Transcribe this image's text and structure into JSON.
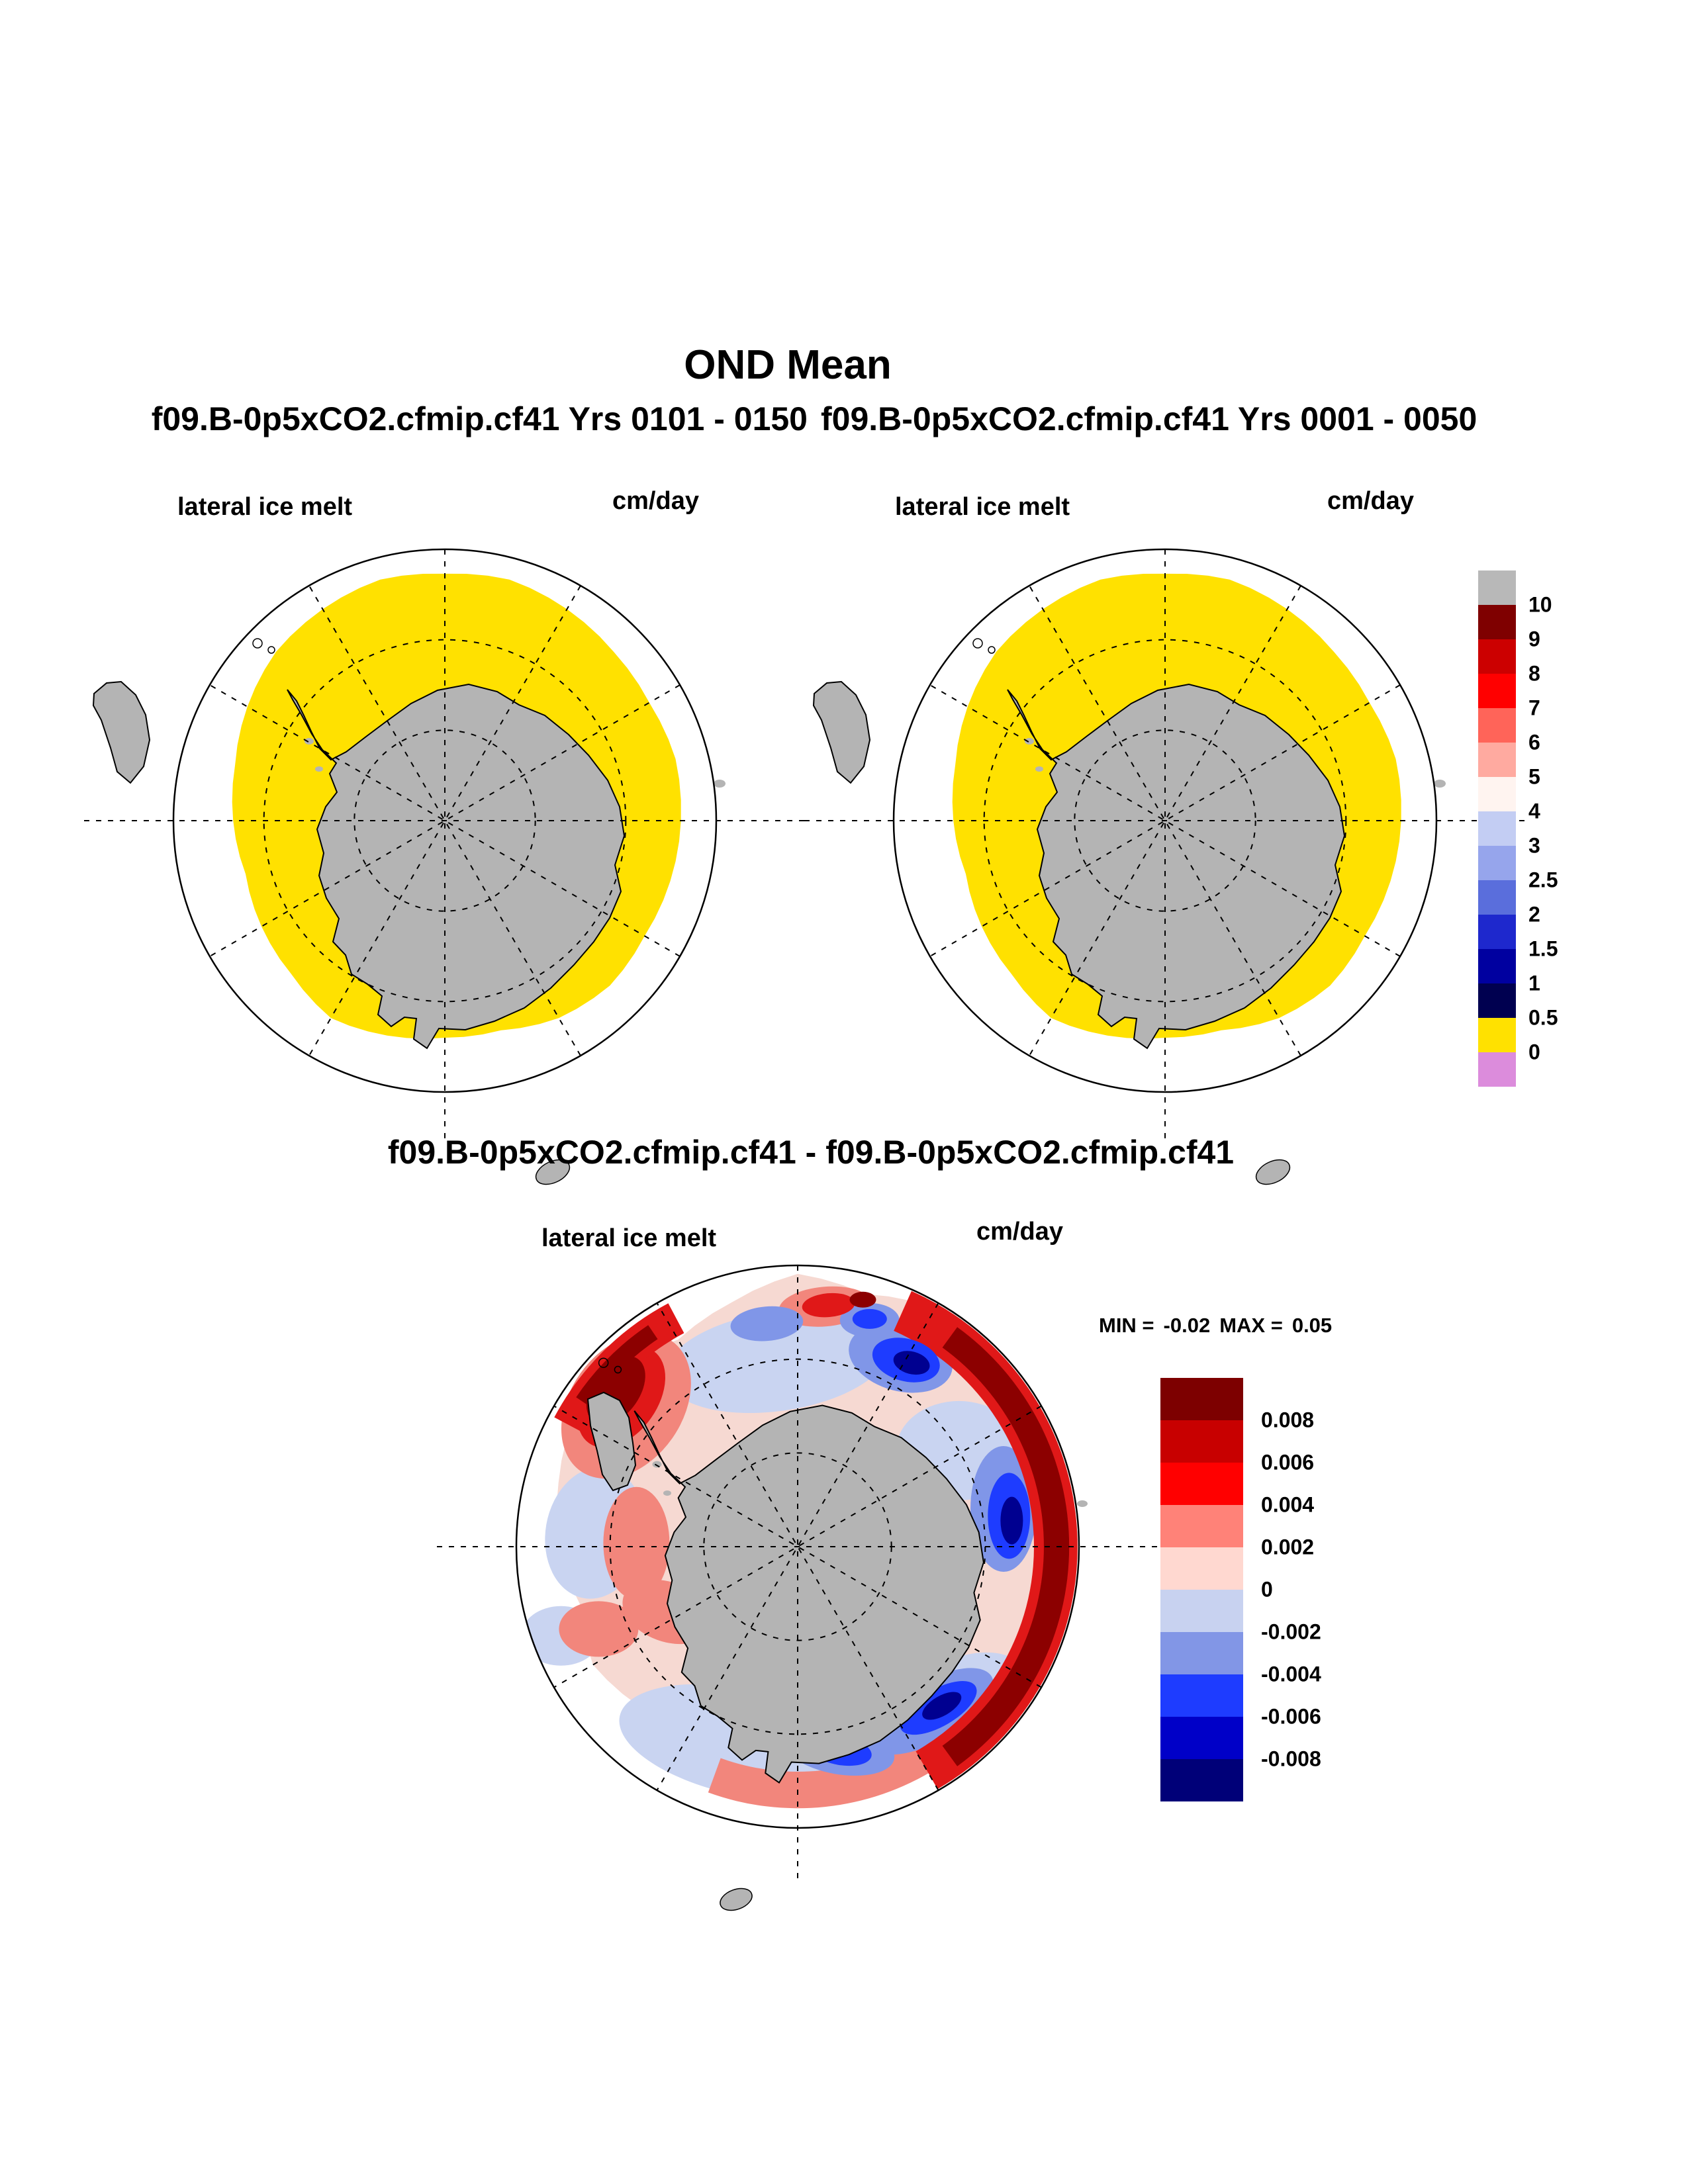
{
  "page": {
    "background": "#ffffff",
    "title": "OND Mean",
    "subtitle_left": "f09.B-0p5xCO2.cfmip.cf41  Yrs 0101 - 0150",
    "subtitle_right": "f09.B-0p5xCO2.cfmip.cf41  Yrs 0001 - 0050",
    "diff_title": "f09.B-0p5xCO2.cfmip.cf41 - f09.B-0p5xCO2.cfmip.cf41"
  },
  "panels": {
    "left": {
      "field_label": "lateral ice melt",
      "units_label": "cm/day"
    },
    "right": {
      "field_label": "lateral ice melt",
      "units_label": "cm/day"
    },
    "diff": {
      "field_label": "lateral ice melt",
      "units_label": "cm/day",
      "min_label": "MIN =",
      "min_value": "-0.02",
      "max_label": "MAX =",
      "max_value": "0.05"
    }
  },
  "colorbar_main": {
    "tick_labels": [
      "10",
      "9",
      "8",
      "7",
      "6",
      "5",
      "4",
      "3",
      "2.5",
      "2",
      "1.5",
      "1",
      "0.5",
      "0"
    ],
    "colors": [
      "#b8b8b8",
      "#7f0000",
      "#cc0000",
      "#ff0000",
      "#ff6459",
      "#ffaaa0",
      "#fff4f0",
      "#c3cdf3",
      "#96a5ec",
      "#5a6edc",
      "#1e28cd",
      "#0000a0",
      "#000050",
      "#ffe100",
      "#dc8cdc"
    ]
  },
  "colorbar_diff": {
    "tick_labels": [
      "0.008",
      "0.006",
      "0.004",
      "0.002",
      "0",
      "-0.002",
      "-0.004",
      "-0.006",
      "-0.008"
    ],
    "colors": [
      "#7d0000",
      "#c80000",
      "#ff0000",
      "#ff8278",
      "#ffd8d0",
      "#c8d2f0",
      "#8296e6",
      "#1e3cff",
      "#0000c8",
      "#000078"
    ]
  },
  "map_colors": {
    "land": "#b4b4b4",
    "ice_band": "#ffe100",
    "ocean": "#ffffff"
  },
  "chart_data": [
    {
      "type": "heatmap",
      "panel": "top-left",
      "title": "f09.B-0p5xCO2.cfmip.cf41  Yrs 0101 - 0150",
      "variable": "lateral ice melt",
      "units": "cm/day",
      "projection": "south-polar-stereographic",
      "contour_levels": [
        0,
        0.5,
        1,
        1.5,
        2,
        2.5,
        3,
        4,
        5,
        6,
        7,
        8,
        9,
        10
      ],
      "palette": [
        "#b8b8b8",
        "#7f0000",
        "#cc0000",
        "#ff0000",
        "#ff6459",
        "#ffaaa0",
        "#fff4f0",
        "#c3cdf3",
        "#96a5ec",
        "#5a6edc",
        "#1e28cd",
        "#0000a0",
        "#000050",
        "#ffe100",
        "#dc8cdc"
      ],
      "summary": "Lateral sea-ice melt of 0-0.5 cm/day (yellow band) fills the Southern Ocean sea-ice zone around gray Antarctica; open ocean beyond the ice edge is 0 (white)."
    },
    {
      "type": "heatmap",
      "panel": "top-right",
      "title": "f09.B-0p5xCO2.cfmip.cf41  Yrs 0001 - 0050",
      "variable": "lateral ice melt",
      "units": "cm/day",
      "projection": "south-polar-stereographic",
      "contour_levels": [
        0,
        0.5,
        1,
        1.5,
        2,
        2.5,
        3,
        4,
        5,
        6,
        7,
        8,
        9,
        10
      ],
      "palette": [
        "#b8b8b8",
        "#7f0000",
        "#cc0000",
        "#ff0000",
        "#ff6459",
        "#ffaaa0",
        "#fff4f0",
        "#c3cdf3",
        "#96a5ec",
        "#5a6edc",
        "#1e28cd",
        "#0000a0",
        "#000050",
        "#ffe100",
        "#dc8cdc"
      ],
      "summary": "Nearly identical yellow 0-0.5 cm/day lateral melt band around Antarctica."
    },
    {
      "type": "heatmap",
      "panel": "difference",
      "title": "f09.B-0p5xCO2.cfmip.cf41 - f09.B-0p5xCO2.cfmip.cf41",
      "variable": "lateral ice melt",
      "units": "cm/day",
      "min": -0.02,
      "max": 0.05,
      "contour_levels": [
        -0.008,
        -0.006,
        -0.004,
        -0.002,
        0,
        0.002,
        0.004,
        0.006,
        0.008
      ],
      "palette": [
        "#7d0000",
        "#c80000",
        "#ff0000",
        "#ff8278",
        "#ffd8d0",
        "#c8d2f0",
        "#8296e6",
        "#1e3cff",
        "#0000c8",
        "#000078"
      ],
      "summary": "Mottled difference field: strong positive (dark red) arc along the eastern ice edge and near the Antarctic Peninsula, negative (blue/navy) pockets northeast and southeast of the continent, weak pink/pale-blue elsewhere."
    }
  ]
}
